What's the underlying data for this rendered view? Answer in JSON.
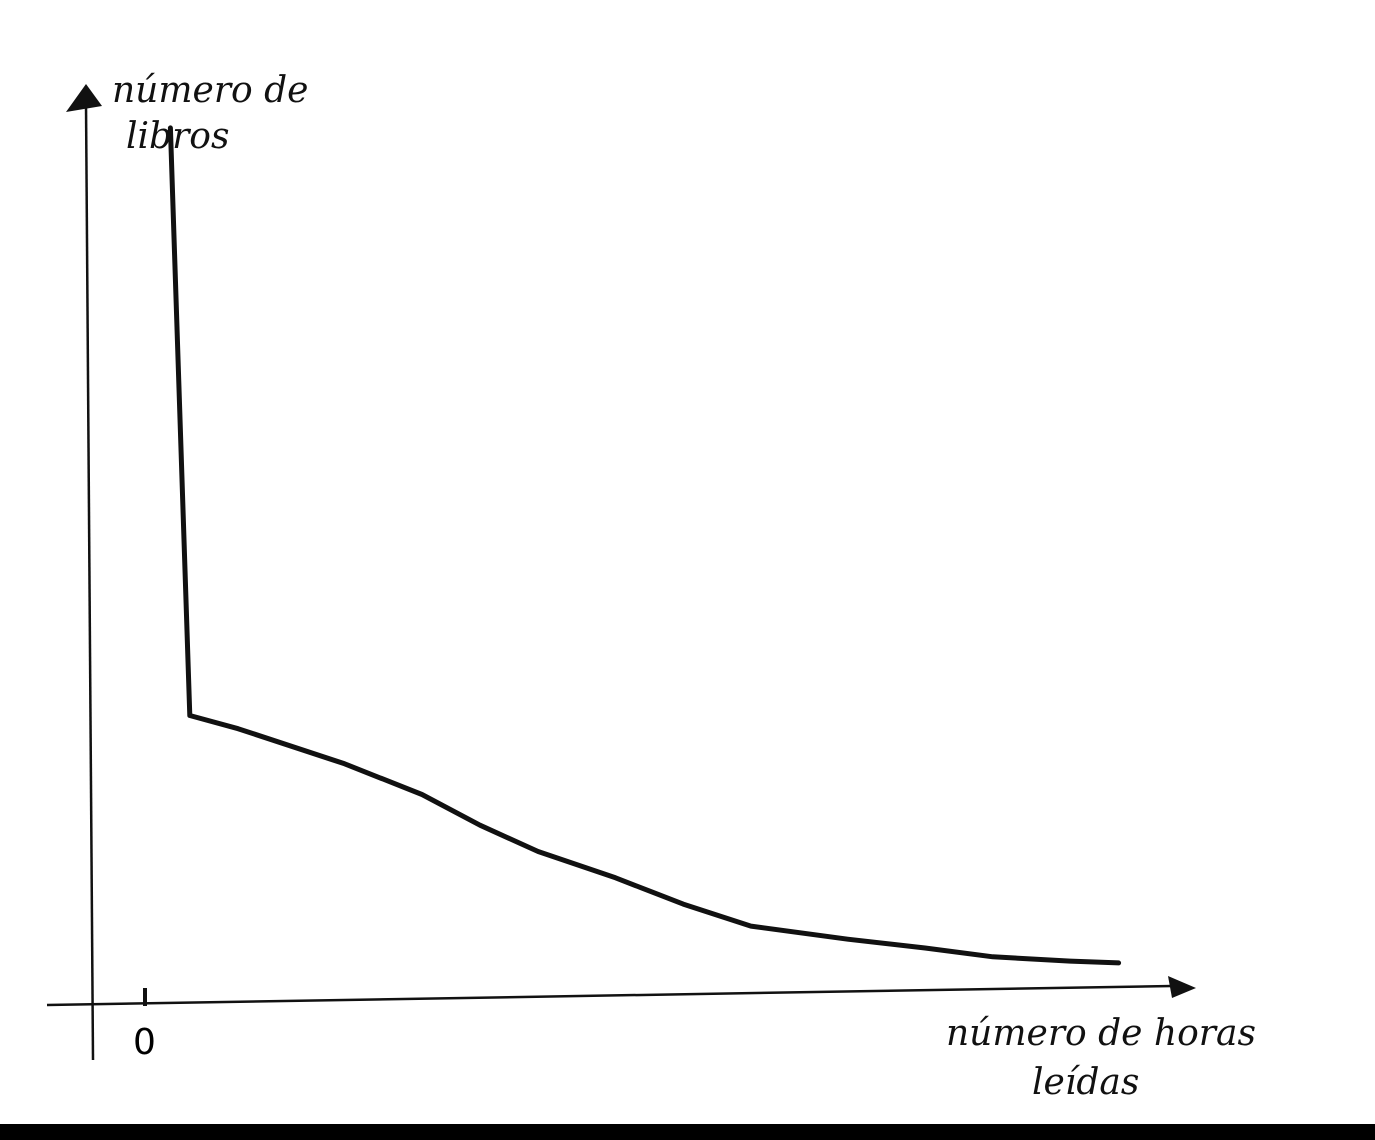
{
  "chart_data": {
    "type": "line",
    "ylabel_lines": [
      "número de",
      "libros"
    ],
    "xlabel_lines": [
      "número de horas",
      "leídas"
    ],
    "tick_labels": [
      "0"
    ],
    "axis_color": "#111111",
    "line_color": "#111111",
    "series": [
      {
        "x": [
          0,
          0.2,
          0.7,
          1.8,
          2.6,
          3.2,
          3.8,
          4.6,
          5.3,
          6.0,
          7.0,
          7.8,
          8.5,
          9.3,
          9.8
        ],
        "y": [
          9.7,
          3.0,
          2.85,
          2.45,
          2.1,
          1.75,
          1.45,
          1.15,
          0.85,
          0.6,
          0.45,
          0.35,
          0.25,
          0.2,
          0.18
        ]
      }
    ],
    "xlim": [
      -0.8,
      10.6
    ],
    "ylim": [
      -0.3,
      10.2
    ],
    "grid": false,
    "legend": "none"
  }
}
